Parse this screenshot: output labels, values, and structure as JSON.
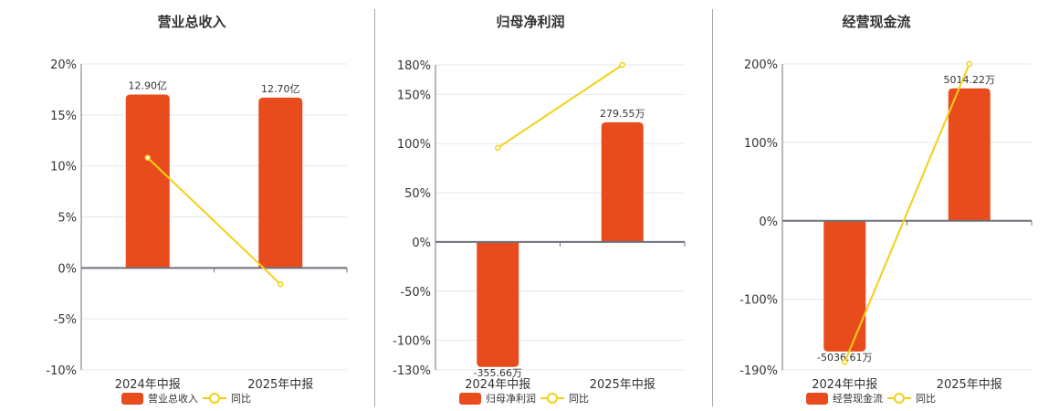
{
  "colors": {
    "bar": "#e84c1c",
    "line": "#f5cf16",
    "grid": "#e3e7f0",
    "axis": "#6e7079",
    "text": "#333333"
  },
  "charts": [
    {
      "title": "营业总收入",
      "bar_label": "营业总收入",
      "line_label": "同比"
    },
    {
      "title": "归母净利润",
      "bar_label": "归母净利润",
      "line_label": "同比"
    },
    {
      "title": "经营现金流",
      "bar_label": "经营现金流",
      "line_label": "同比"
    }
  ],
  "chart_data": [
    {
      "type": "bar",
      "title": "营业总收入",
      "categories": [
        "2024年中报",
        "2025年中报"
      ],
      "series": [
        {
          "name": "营业总收入",
          "type": "bar",
          "values": [
            12.9,
            12.7
          ],
          "unit": "亿",
          "labels": [
            "12.90亿",
            "12.70亿"
          ],
          "axis_heights_pct": [
            17.0,
            16.7
          ]
        },
        {
          "name": "同比",
          "type": "line",
          "values": [
            10.8,
            -1.6
          ],
          "unit": "%"
        }
      ],
      "yticks": [
        "20%",
        "15%",
        "10%",
        "5%",
        "0%",
        "-5%",
        "-10%"
      ],
      "ylim": [
        -10,
        20
      ],
      "legend_position": "bottom",
      "grid": true
    },
    {
      "type": "bar",
      "title": "归母净利润",
      "categories": [
        "2024年中报",
        "2025年中报"
      ],
      "series": [
        {
          "name": "归母净利润",
          "type": "bar",
          "values": [
            -355.66,
            279.55
          ],
          "unit": "万",
          "labels": [
            "-355.66万",
            "279.55万"
          ],
          "axis_heights_pct": [
            -127,
            121.6
          ]
        },
        {
          "name": "同比",
          "type": "line",
          "values": [
            95.6,
            180
          ],
          "unit": "%"
        }
      ],
      "yticks": [
        "180%",
        "150%",
        "100%",
        "50%",
        "0%",
        "-50%",
        "-100%",
        "-130%"
      ],
      "ylim": [
        -130,
        180
      ],
      "legend_position": "bottom",
      "grid": true
    },
    {
      "type": "bar",
      "title": "经营现金流",
      "categories": [
        "2024年中报",
        "2025年中报"
      ],
      "series": [
        {
          "name": "经营现金流",
          "type": "bar",
          "values": [
            -5036.61,
            5014.22
          ],
          "unit": "万",
          "labels": [
            "-5036.61万",
            "5014.22万"
          ],
          "axis_heights_pct": [
            -166.5,
            168.8
          ]
        },
        {
          "name": "同比",
          "type": "line",
          "values": [
            -180,
            200
          ],
          "unit": "%"
        }
      ],
      "yticks": [
        "200%",
        "100%",
        "0%",
        "-100%",
        "-190%"
      ],
      "ylim": [
        -190,
        200
      ],
      "legend_position": "bottom",
      "grid": true
    }
  ]
}
